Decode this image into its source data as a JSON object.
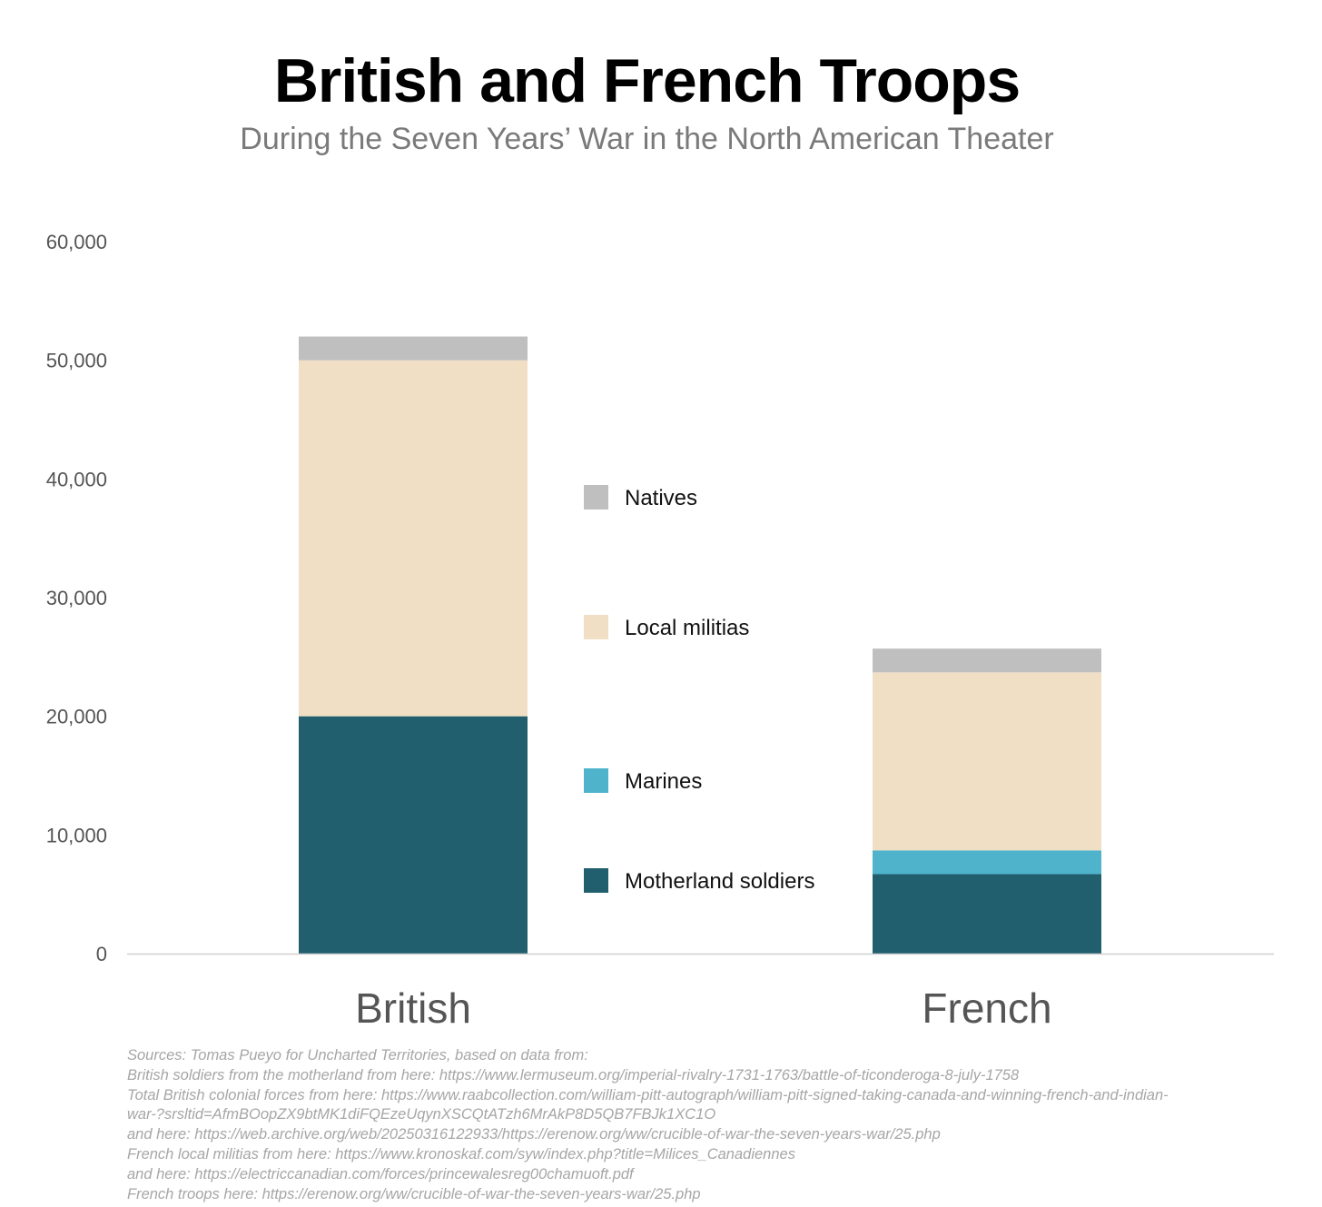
{
  "chart_data": {
    "type": "bar",
    "stacked": true,
    "title": "British and French Troops",
    "subtitle": "During the Seven Years’ War in the North American Theater",
    "categories": [
      "British",
      "French"
    ],
    "series": [
      {
        "name": "Motherland soldiers",
        "color": "#215f6e",
        "values": [
          20000,
          6700
        ]
      },
      {
        "name": "Marines",
        "color": "#4fb3cb",
        "values": [
          0,
          2000
        ]
      },
      {
        "name": "Local militias",
        "color": "#f0dfc4",
        "values": [
          30000,
          15000
        ]
      },
      {
        "name": "Natives",
        "color": "#bfbfbf",
        "values": [
          2000,
          2000
        ]
      }
    ],
    "ylim": [
      0,
      60000
    ],
    "yticks": [
      0,
      10000,
      20000,
      30000,
      40000,
      50000,
      60000
    ],
    "ytick_labels": [
      "0",
      "10,000",
      "20,000",
      "30,000",
      "40,000",
      "50,000",
      "60,000"
    ],
    "xlabel": "",
    "ylabel": "",
    "grid": false,
    "legend_placement": "center, between bars",
    "legend_order": [
      "Natives",
      "Local militias",
      "Marines",
      "Motherland soldiers"
    ]
  },
  "sources": [
    "Sources: Tomas Pueyo for Uncharted Territories, based on data from:",
    "British soldiers from the motherland from here: https://www.lermuseum.org/imperial-rivalry-1731-1763/battle-of-ticonderoga-8-july-1758",
    "Total British colonial forces from here: https://www.raabcollection.com/william-pitt-autograph/william-pitt-signed-taking-canada-and-winning-french-and-indian-",
    "war-?srsltid=AfmBOopZX9btMK1diFQEzeUqynXSCQtATzh6MrAkP8D5QB7FBJk1XC1O",
    "and here: https://web.archive.org/web/20250316122933/https://erenow.org/ww/crucible-of-war-the-seven-years-war/25.php",
    "French local militias from here: https://www.kronoskaf.com/syw/index.php?title=Milices_Canadiennes",
    "and here: https://electriccanadian.com/forces/princewalesreg00chamuoft.pdf",
    "French troops here: https://erenow.org/ww/crucible-of-war-the-seven-years-war/25.php"
  ]
}
